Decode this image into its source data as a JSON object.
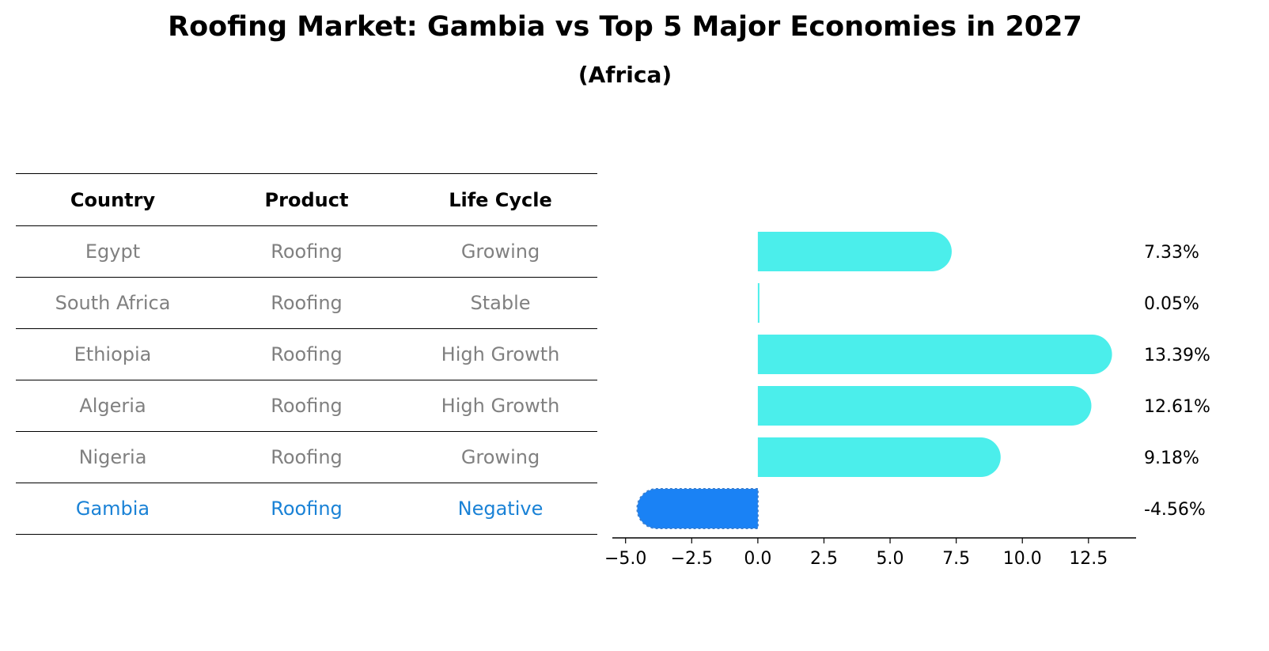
{
  "title": "Roofing Market: Gambia vs Top 5 Major Economies in 2027",
  "subtitle": "(Africa)",
  "table": {
    "headers": [
      "Country",
      "Product",
      "Life Cycle"
    ],
    "rows": [
      [
        "Egypt",
        "Roofing",
        "Growing"
      ],
      [
        "South Africa",
        "Roofing",
        "Stable"
      ],
      [
        "Ethiopia",
        "Roofing",
        "High Growth"
      ],
      [
        "Algeria",
        "Roofing",
        "High Growth"
      ],
      [
        "Nigeria",
        "Roofing",
        "Growing"
      ],
      [
        "Gambia",
        "Roofing",
        "Negative"
      ]
    ]
  },
  "chart_data": {
    "type": "bar",
    "orientation": "horizontal",
    "categories": [
      "Egypt",
      "South Africa",
      "Ethiopia",
      "Algeria",
      "Nigeria",
      "Gambia"
    ],
    "values": [
      7.33,
      0.05,
      13.39,
      12.61,
      9.18,
      -4.56
    ],
    "value_labels": [
      "7.33%",
      "0.05%",
      "13.39%",
      "12.61%",
      "9.18%",
      "-4.56%"
    ],
    "xlim": [
      -5.5,
      14.3
    ],
    "xticks": [
      -5.0,
      -2.5,
      0.0,
      2.5,
      5.0,
      7.5,
      10.0,
      12.5
    ],
    "xtick_labels": [
      "−5.0",
      "−2.5",
      "0.0",
      "2.5",
      "5.0",
      "7.5",
      "10.0",
      "12.5"
    ],
    "colors": {
      "default": "#4beeeb",
      "highlight": "#1a82f5"
    },
    "highlight_category": "Gambia"
  }
}
